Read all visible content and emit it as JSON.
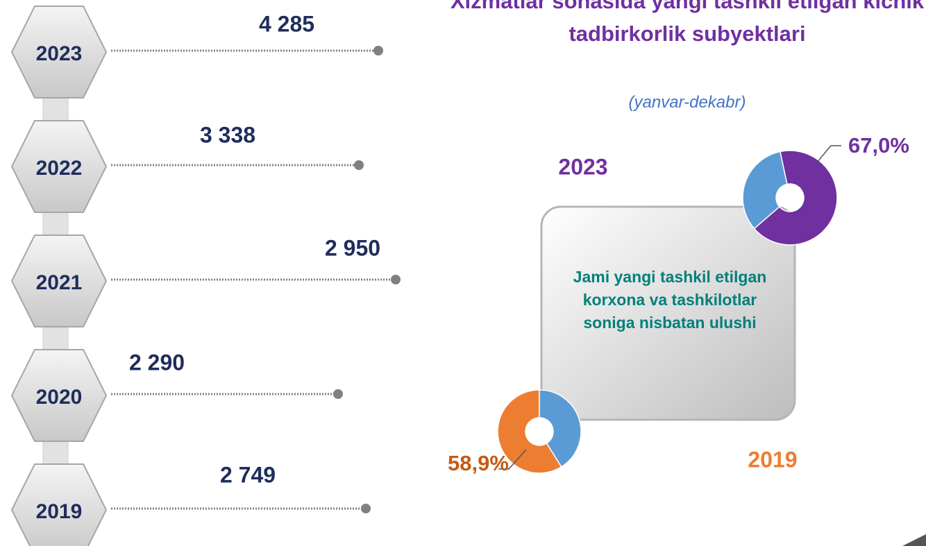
{
  "title": "Xizmatlar sohasida yangi tashkil etilgan kichik tadbirkorlik subyektlari",
  "subtitle": "(yanvar-dekabr)",
  "timeline": [
    {
      "year": "2023",
      "value": "4 285"
    },
    {
      "year": "2022",
      "value": "3 338"
    },
    {
      "year": "2021",
      "value": "2 950"
    },
    {
      "year": "2020",
      "value": "2 290"
    },
    {
      "year": "2019",
      "value": "2 749"
    }
  ],
  "note": "Jami yangi tashkil etilgan korxona va tashkilotlar soniga nisbatan ulushi",
  "chart_data": [
    {
      "type": "pie",
      "title": "2023",
      "values": [
        67.0,
        33.0
      ],
      "value_labels": [
        "67,0%",
        null
      ],
      "colors": [
        "#7030a0",
        "#5b9bd5"
      ]
    },
    {
      "type": "pie",
      "title": "2019",
      "values": [
        58.9,
        41.1
      ],
      "value_labels": [
        "58,9%",
        null
      ],
      "colors": [
        "#ed7d31",
        "#5b9bd5"
      ]
    }
  ]
}
